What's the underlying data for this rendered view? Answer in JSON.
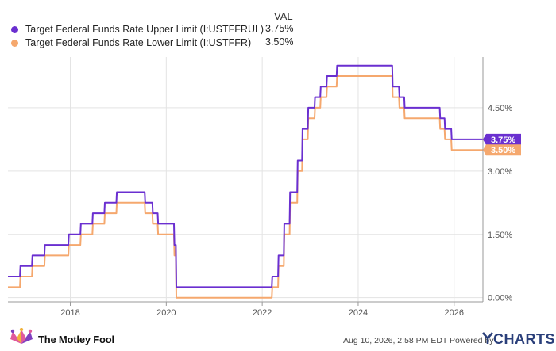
{
  "legend": {
    "header": "VAL",
    "items": [
      {
        "name": "Target Federal Funds Rate Upper Limit (I:USTFFRUL)",
        "value": "3.75%",
        "color": "#6a2fd0"
      },
      {
        "name": "Target Federal Funds Rate Lower Limit (I:USTFFR)",
        "value": "3.50%",
        "color": "#f5a86e"
      }
    ]
  },
  "footer": {
    "brand": "The Motley Fool",
    "timestamp": "Aug 10, 2026, 2:58 PM EDT  Powered by",
    "provider": "CHARTS"
  },
  "chart_data": {
    "type": "line",
    "x_ticks": [
      "2018",
      "2020",
      "2022",
      "2024",
      "2026"
    ],
    "y_ticks": [
      "0.00%",
      "1.50%",
      "3.00%",
      "4.50%"
    ],
    "xlim": [
      2016.7,
      2026.6
    ],
    "ylim": [
      -0.1,
      5.7
    ],
    "grid": true,
    "legend_position": "top-left",
    "end_labels": [
      "3.75%",
      "3.50%"
    ],
    "series": [
      {
        "name": "Target Federal Funds Rate Upper Limit (I:USTFFRUL)",
        "color": "#6a2fd0",
        "points": [
          [
            2016.7,
            0.5
          ],
          [
            2016.95,
            0.5
          ],
          [
            2016.96,
            0.75
          ],
          [
            2017.2,
            0.75
          ],
          [
            2017.21,
            1.0
          ],
          [
            2017.46,
            1.0
          ],
          [
            2017.47,
            1.25
          ],
          [
            2017.96,
            1.25
          ],
          [
            2017.97,
            1.5
          ],
          [
            2018.21,
            1.5
          ],
          [
            2018.22,
            1.75
          ],
          [
            2018.46,
            1.75
          ],
          [
            2018.47,
            2.0
          ],
          [
            2018.71,
            2.0
          ],
          [
            2018.72,
            2.25
          ],
          [
            2018.96,
            2.25
          ],
          [
            2018.97,
            2.5
          ],
          [
            2019.55,
            2.5
          ],
          [
            2019.56,
            2.25
          ],
          [
            2019.71,
            2.25
          ],
          [
            2019.72,
            2.0
          ],
          [
            2019.82,
            2.0
          ],
          [
            2019.83,
            1.75
          ],
          [
            2020.16,
            1.75
          ],
          [
            2020.17,
            1.25
          ],
          [
            2020.2,
            1.25
          ],
          [
            2020.21,
            0.25
          ],
          [
            2022.2,
            0.25
          ],
          [
            2022.21,
            0.5
          ],
          [
            2022.33,
            0.5
          ],
          [
            2022.34,
            1.0
          ],
          [
            2022.45,
            1.0
          ],
          [
            2022.46,
            1.75
          ],
          [
            2022.57,
            1.75
          ],
          [
            2022.58,
            2.5
          ],
          [
            2022.73,
            2.5
          ],
          [
            2022.74,
            3.25
          ],
          [
            2022.83,
            3.25
          ],
          [
            2022.84,
            4.0
          ],
          [
            2022.95,
            4.0
          ],
          [
            2022.96,
            4.5
          ],
          [
            2023.09,
            4.5
          ],
          [
            2023.1,
            4.75
          ],
          [
            2023.21,
            4.75
          ],
          [
            2023.22,
            5.0
          ],
          [
            2023.34,
            5.0
          ],
          [
            2023.35,
            5.25
          ],
          [
            2023.55,
            5.25
          ],
          [
            2023.56,
            5.5
          ],
          [
            2024.71,
            5.5
          ],
          [
            2024.72,
            5.0
          ],
          [
            2024.85,
            5.0
          ],
          [
            2024.86,
            4.75
          ],
          [
            2024.96,
            4.75
          ],
          [
            2024.97,
            4.5
          ],
          [
            2025.7,
            4.5
          ],
          [
            2025.71,
            4.25
          ],
          [
            2025.8,
            4.25
          ],
          [
            2025.81,
            4.0
          ],
          [
            2025.94,
            4.0
          ],
          [
            2025.95,
            3.75
          ],
          [
            2026.6,
            3.75
          ]
        ]
      },
      {
        "name": "Target Federal Funds Rate Lower Limit (I:USTFFR)",
        "color": "#f5a86e",
        "points": [
          [
            2016.7,
            0.25
          ],
          [
            2016.95,
            0.25
          ],
          [
            2016.96,
            0.5
          ],
          [
            2017.2,
            0.5
          ],
          [
            2017.21,
            0.75
          ],
          [
            2017.46,
            0.75
          ],
          [
            2017.47,
            1.0
          ],
          [
            2017.96,
            1.0
          ],
          [
            2017.97,
            1.25
          ],
          [
            2018.21,
            1.25
          ],
          [
            2018.22,
            1.5
          ],
          [
            2018.46,
            1.5
          ],
          [
            2018.47,
            1.75
          ],
          [
            2018.71,
            1.75
          ],
          [
            2018.72,
            2.0
          ],
          [
            2018.96,
            2.0
          ],
          [
            2018.97,
            2.25
          ],
          [
            2019.55,
            2.25
          ],
          [
            2019.56,
            2.0
          ],
          [
            2019.71,
            2.0
          ],
          [
            2019.72,
            1.75
          ],
          [
            2019.82,
            1.75
          ],
          [
            2019.83,
            1.5
          ],
          [
            2020.16,
            1.5
          ],
          [
            2020.17,
            1.0
          ],
          [
            2020.2,
            1.0
          ],
          [
            2020.21,
            0.0
          ],
          [
            2022.2,
            0.0
          ],
          [
            2022.21,
            0.25
          ],
          [
            2022.33,
            0.25
          ],
          [
            2022.34,
            0.75
          ],
          [
            2022.45,
            0.75
          ],
          [
            2022.46,
            1.5
          ],
          [
            2022.57,
            1.5
          ],
          [
            2022.58,
            2.25
          ],
          [
            2022.73,
            2.25
          ],
          [
            2022.74,
            3.0
          ],
          [
            2022.83,
            3.0
          ],
          [
            2022.84,
            3.75
          ],
          [
            2022.95,
            3.75
          ],
          [
            2022.96,
            4.25
          ],
          [
            2023.09,
            4.25
          ],
          [
            2023.1,
            4.5
          ],
          [
            2023.21,
            4.5
          ],
          [
            2023.22,
            4.75
          ],
          [
            2023.34,
            4.75
          ],
          [
            2023.35,
            5.0
          ],
          [
            2023.55,
            5.0
          ],
          [
            2023.56,
            5.25
          ],
          [
            2024.71,
            5.25
          ],
          [
            2024.72,
            4.75
          ],
          [
            2024.85,
            4.75
          ],
          [
            2024.86,
            4.5
          ],
          [
            2024.96,
            4.5
          ],
          [
            2024.97,
            4.25
          ],
          [
            2025.7,
            4.25
          ],
          [
            2025.71,
            4.0
          ],
          [
            2025.8,
            4.0
          ],
          [
            2025.81,
            3.75
          ],
          [
            2025.94,
            3.75
          ],
          [
            2025.95,
            3.5
          ],
          [
            2026.6,
            3.5
          ]
        ]
      }
    ]
  }
}
